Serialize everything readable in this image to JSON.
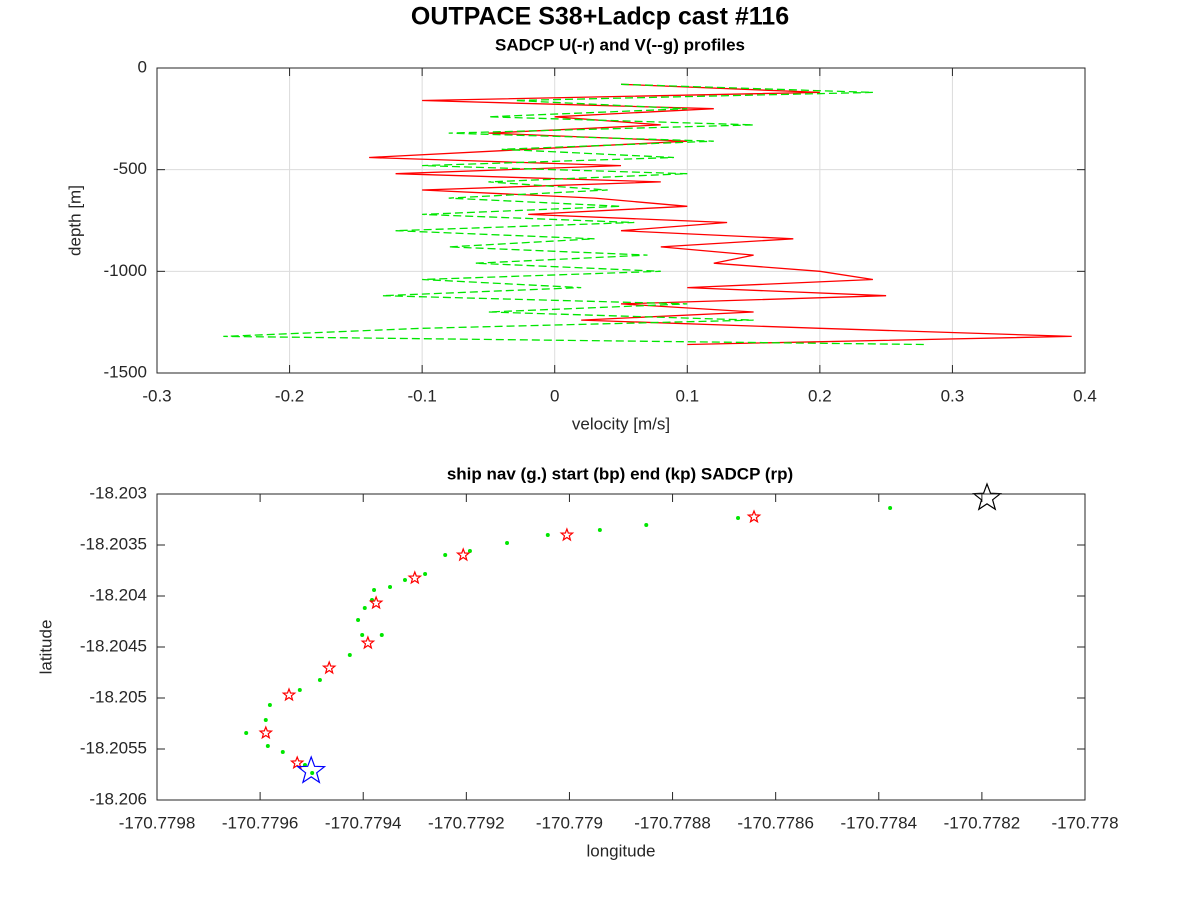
{
  "chart_data": [
    {
      "type": "profile",
      "title": "OUTPACE S38+Ladcp cast #116",
      "subtitle": "SADCP U(-r) and V(--g) profiles",
      "xlabel": "velocity [m/s]",
      "ylabel": "depth [m]",
      "xlim": [
        -0.3,
        0.4
      ],
      "xticks": [
        -0.3,
        -0.2,
        -0.1,
        0,
        0.1,
        0.2,
        0.3,
        0.4
      ],
      "ylim": [
        -1500,
        0
      ],
      "yticks": [
        0,
        -500,
        -1000,
        -1500
      ],
      "grid": true,
      "y": [
        -80,
        -120,
        -160,
        -200,
        -240,
        -280,
        -320,
        -360,
        -400,
        -440,
        -480,
        -520,
        -560,
        -600,
        -640,
        -680,
        -720,
        -760,
        -800,
        -840,
        -880,
        -920,
        -960,
        -1000,
        -1040,
        -1080,
        -1120,
        -1160,
        -1200,
        -1240,
        -1280,
        -1320,
        -1360
      ],
      "series": [
        {
          "color": "#ff0000",
          "dash": "solid",
          "values": [
            0.05,
            0.2,
            -0.1,
            0.12,
            0.0,
            0.08,
            -0.05,
            0.1,
            -0.02,
            -0.14,
            0.05,
            -0.12,
            0.08,
            -0.1,
            0.03,
            0.1,
            -0.02,
            0.13,
            0.05,
            0.18,
            0.08,
            0.15,
            0.12,
            0.2,
            0.24,
            0.1,
            0.25,
            0.05,
            0.15,
            0.02,
            0.2,
            0.39,
            0.1
          ]
        },
        {
          "color": "#00e600",
          "dash": "dashed",
          "values": [
            0.05,
            0.24,
            -0.03,
            0.1,
            -0.05,
            0.15,
            -0.08,
            0.12,
            -0.04,
            0.09,
            -0.1,
            0.1,
            -0.05,
            0.04,
            -0.08,
            0.05,
            -0.1,
            0.06,
            -0.12,
            0.03,
            -0.08,
            0.07,
            -0.06,
            0.08,
            -0.1,
            0.02,
            -0.13,
            0.1,
            -0.05,
            0.15,
            -0.1,
            -0.25,
            0.28
          ]
        }
      ]
    },
    {
      "type": "scatter",
      "title": "ship nav (g.) start (bp) end (kp) SADCP (rp)",
      "xlabel": "longitude",
      "ylabel": "latitude",
      "xlim": [
        -170.7798,
        -170.778
      ],
      "xticks": [
        -170.7798,
        -170.7796,
        -170.7794,
        -170.7792,
        -170.779,
        -170.7788,
        -170.7786,
        -170.7784,
        -170.7782,
        -170.778
      ],
      "ylim": [
        -18.206,
        -18.203
      ],
      "yticks": [
        -18.203,
        -18.2035,
        -18.204,
        -18.2045,
        -18.205,
        -18.2055,
        -18.206
      ],
      "grid": false,
      "series": [
        {
          "color": "#00e600",
          "marker": "dot",
          "x": [
            -170.778378,
            -170.778673,
            -170.778851,
            -170.778941,
            -170.779042,
            -170.779121,
            -170.779193,
            -170.779241,
            -170.77928,
            -170.779319,
            -170.779348,
            -170.779379,
            -170.779383,
            -170.779397,
            -170.77941,
            -170.779402,
            -170.779364,
            -170.779426,
            -170.779484,
            -170.779523,
            -170.779581,
            -170.779589,
            -170.779627,
            -170.779585,
            -170.779556,
            -170.779513,
            -170.779499
          ],
          "values": [
            -18.203137,
            -18.203235,
            -18.203304,
            -18.203353,
            -18.203402,
            -18.20348,
            -18.203559,
            -18.203598,
            -18.203784,
            -18.203843,
            -18.203912,
            -18.203941,
            -18.204039,
            -18.204118,
            -18.204235,
            -18.204382,
            -18.204382,
            -18.204578,
            -18.204824,
            -18.204922,
            -18.205069,
            -18.205216,
            -18.205343,
            -18.205471,
            -18.205529,
            -18.205657,
            -18.205735
          ]
        },
        {
          "color": "#ff0000",
          "marker": "star",
          "x": [
            -170.778642,
            -170.779005,
            -170.779206,
            -170.7793,
            -170.779375,
            -170.779391,
            -170.779466,
            -170.779544,
            -170.779589,
            -170.779528
          ],
          "values": [
            -18.203225,
            -18.203402,
            -18.203598,
            -18.203824,
            -18.204069,
            -18.204461,
            -18.204706,
            -18.204971,
            -18.205343,
            -18.205637
          ]
        },
        {
          "color": "#0000ff",
          "marker": "big-star",
          "x": [
            -170.779501
          ],
          "values": [
            -18.205716
          ]
        },
        {
          "color": "#000000",
          "marker": "big-star",
          "x": [
            -170.77819
          ],
          "values": [
            -18.203039
          ]
        }
      ]
    }
  ]
}
